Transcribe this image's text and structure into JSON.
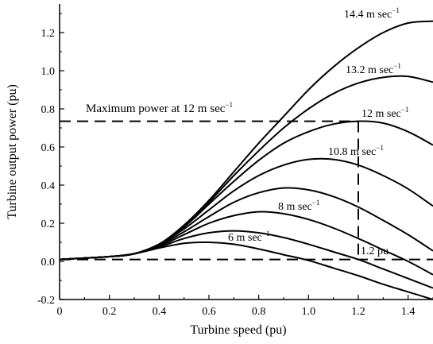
{
  "chart_data": {
    "type": "line",
    "title": "",
    "xlabel": "Turbine speed (pu)",
    "ylabel": "Turbine output power (pu)",
    "xlim": [
      0,
      1.5
    ],
    "ylim": [
      -0.2,
      1.35
    ],
    "xticks": [
      0,
      0.2,
      0.4,
      0.6,
      0.8,
      1.0,
      1.2,
      1.4
    ],
    "xtick_labels": [
      "0",
      "0.2",
      "0.4",
      "0.6",
      "0.8",
      "1.0",
      "1.2",
      "1.4"
    ],
    "yticks": [
      -0.2,
      0,
      0.2,
      0.4,
      0.6,
      0.8,
      1.0,
      1.2
    ],
    "ytick_labels": [
      "-0.2",
      "0.0",
      "0.2",
      "0.4",
      "0.6",
      "0.8",
      "1.0",
      "1.2"
    ],
    "grid": false,
    "series": [
      {
        "name": "6 m sec",
        "sup": "−1",
        "points": [
          [
            0,
            0.01
          ],
          [
            0.2,
            0.025
          ],
          [
            0.3,
            0.04
          ],
          [
            0.4,
            0.07
          ],
          [
            0.5,
            0.095
          ],
          [
            0.6,
            0.1
          ],
          [
            0.7,
            0.09
          ],
          [
            0.8,
            0.065
          ],
          [
            0.9,
            0.035
          ],
          [
            1.0,
            0.005
          ],
          [
            1.1,
            -0.035
          ],
          [
            1.2,
            -0.075
          ],
          [
            1.3,
            -0.12
          ],
          [
            1.4,
            -0.16
          ],
          [
            1.5,
            -0.2
          ]
        ]
      },
      {
        "name": "",
        "points": [
          [
            0,
            0.01
          ],
          [
            0.2,
            0.025
          ],
          [
            0.3,
            0.04
          ],
          [
            0.4,
            0.075
          ],
          [
            0.5,
            0.12
          ],
          [
            0.6,
            0.15
          ],
          [
            0.7,
            0.16
          ],
          [
            0.8,
            0.15
          ],
          [
            0.9,
            0.125
          ],
          [
            1.0,
            0.09
          ],
          [
            1.1,
            0.05
          ],
          [
            1.2,
            0.01
          ],
          [
            1.3,
            -0.04
          ],
          [
            1.4,
            -0.09
          ],
          [
            1.5,
            -0.14
          ]
        ]
      },
      {
        "name": "8 m sec",
        "sup": "−1",
        "points": [
          [
            0,
            0.01
          ],
          [
            0.2,
            0.025
          ],
          [
            0.3,
            0.04
          ],
          [
            0.4,
            0.08
          ],
          [
            0.5,
            0.14
          ],
          [
            0.6,
            0.2
          ],
          [
            0.7,
            0.24
          ],
          [
            0.8,
            0.26
          ],
          [
            0.9,
            0.25
          ],
          [
            1.0,
            0.22
          ],
          [
            1.1,
            0.175
          ],
          [
            1.2,
            0.12
          ],
          [
            1.3,
            0.06
          ],
          [
            1.4,
            0.0
          ],
          [
            1.5,
            -0.07
          ]
        ]
      },
      {
        "name": "",
        "points": [
          [
            0,
            0.01
          ],
          [
            0.2,
            0.025
          ],
          [
            0.3,
            0.04
          ],
          [
            0.4,
            0.085
          ],
          [
            0.5,
            0.155
          ],
          [
            0.6,
            0.235
          ],
          [
            0.7,
            0.31
          ],
          [
            0.8,
            0.36
          ],
          [
            0.9,
            0.385
          ],
          [
            1.0,
            0.375
          ],
          [
            1.1,
            0.34
          ],
          [
            1.2,
            0.285
          ],
          [
            1.3,
            0.215
          ],
          [
            1.4,
            0.14
          ],
          [
            1.5,
            0.055
          ]
        ]
      },
      {
        "name": "10.8 m sec",
        "sup": "−1",
        "points": [
          [
            0,
            0.01
          ],
          [
            0.2,
            0.025
          ],
          [
            0.3,
            0.04
          ],
          [
            0.4,
            0.09
          ],
          [
            0.5,
            0.17
          ],
          [
            0.6,
            0.27
          ],
          [
            0.7,
            0.37
          ],
          [
            0.8,
            0.45
          ],
          [
            0.9,
            0.505
          ],
          [
            1.0,
            0.535
          ],
          [
            1.1,
            0.535
          ],
          [
            1.2,
            0.505
          ],
          [
            1.3,
            0.45
          ],
          [
            1.4,
            0.38
          ],
          [
            1.5,
            0.29
          ]
        ]
      },
      {
        "name": "12 m sec",
        "sup": "−1",
        "points": [
          [
            0,
            0.01
          ],
          [
            0.2,
            0.025
          ],
          [
            0.3,
            0.04
          ],
          [
            0.4,
            0.09
          ],
          [
            0.5,
            0.18
          ],
          [
            0.6,
            0.3
          ],
          [
            0.7,
            0.42
          ],
          [
            0.8,
            0.53
          ],
          [
            0.9,
            0.62
          ],
          [
            1.0,
            0.68
          ],
          [
            1.1,
            0.72
          ],
          [
            1.2,
            0.735
          ],
          [
            1.3,
            0.725
          ],
          [
            1.4,
            0.68
          ],
          [
            1.5,
            0.61
          ]
        ]
      },
      {
        "name": "13.2 m sec",
        "sup": "−1",
        "points": [
          [
            0,
            0.01
          ],
          [
            0.2,
            0.025
          ],
          [
            0.3,
            0.04
          ],
          [
            0.4,
            0.09
          ],
          [
            0.5,
            0.185
          ],
          [
            0.6,
            0.31
          ],
          [
            0.7,
            0.45
          ],
          [
            0.8,
            0.58
          ],
          [
            0.9,
            0.7
          ],
          [
            1.0,
            0.8
          ],
          [
            1.1,
            0.88
          ],
          [
            1.2,
            0.935
          ],
          [
            1.3,
            0.965
          ],
          [
            1.4,
            0.97
          ],
          [
            1.5,
            0.94
          ]
        ]
      },
      {
        "name": "14.4 m sec",
        "sup": "−1",
        "points": [
          [
            0,
            0.01
          ],
          [
            0.2,
            0.025
          ],
          [
            0.3,
            0.04
          ],
          [
            0.4,
            0.09
          ],
          [
            0.5,
            0.19
          ],
          [
            0.6,
            0.32
          ],
          [
            0.7,
            0.47
          ],
          [
            0.8,
            0.62
          ],
          [
            0.9,
            0.76
          ],
          [
            1.0,
            0.9
          ],
          [
            1.1,
            1.02
          ],
          [
            1.2,
            1.12
          ],
          [
            1.3,
            1.2
          ],
          [
            1.4,
            1.25
          ],
          [
            1.5,
            1.26
          ]
        ]
      }
    ],
    "annotations": [
      {
        "text": "Maximum power at 12 m sec",
        "sup": "−1"
      },
      {
        "text": "1.2 pu",
        "sup": ""
      }
    ],
    "reference_lines": {
      "max_power_y": 0.735,
      "speed_x": 1.2,
      "zero_y": 0.01
    }
  }
}
